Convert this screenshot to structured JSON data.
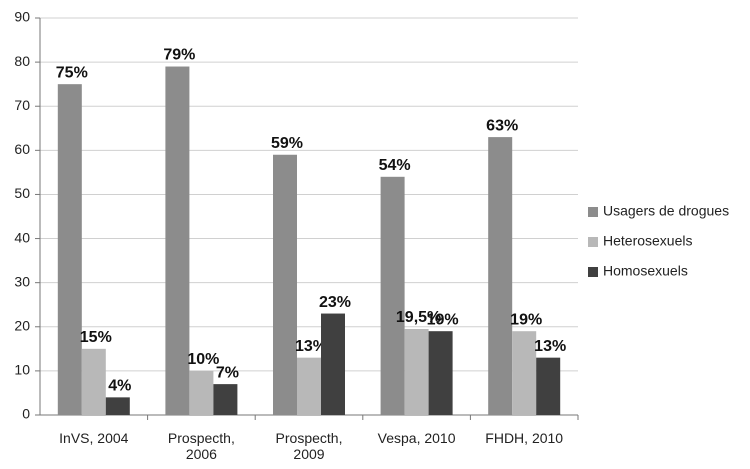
{
  "chart_data": {
    "type": "bar",
    "categories": [
      "InVS, 2004",
      "Prospecth, 2006",
      "Prospecth, 2009",
      "Vespa, 2010",
      "FHDH, 2010"
    ],
    "series": [
      {
        "name": "Usagers de drogues",
        "color": "#8c8c8c",
        "values": [
          75,
          79,
          59,
          54,
          63
        ],
        "value_labels": [
          "75%",
          "79%",
          "59%",
          "54%",
          "63%"
        ]
      },
      {
        "name": "Heterosexuels",
        "color": "#b8b8b8",
        "values": [
          15,
          10,
          13,
          19.5,
          19
        ],
        "value_labels": [
          "15%",
          "10%",
          "13%",
          "19,5%",
          "19%"
        ]
      },
      {
        "name": "Homosexuels",
        "color": "#404040",
        "values": [
          4,
          7,
          23,
          19,
          13
        ],
        "value_labels": [
          "4%",
          "7%",
          "23%",
          "19%",
          "13%"
        ]
      }
    ],
    "ylim": [
      0,
      90
    ],
    "yticks": [
      0,
      10,
      20,
      30,
      40,
      50,
      60,
      70,
      80,
      90
    ],
    "grid": true,
    "legend": "right"
  }
}
